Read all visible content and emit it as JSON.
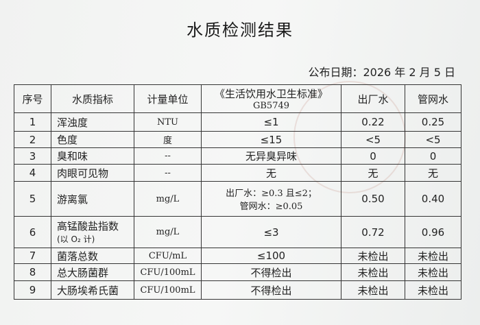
{
  "title": "水质检测结果",
  "publish_date": "公布日期：2026 年 2 月 5 日",
  "table": {
    "headers": [
      "序号",
      "水质指标",
      "计量单位",
      "《生活饮用水卫生标准》",
      "出厂水",
      "管网水"
    ],
    "standard_code": "GB5749",
    "rows": [
      {
        "no": "1",
        "indicator": "浑浊度",
        "unit": "NTU",
        "standard": "≤1",
        "factory": "0.22",
        "network": "0.25"
      },
      {
        "no": "2",
        "indicator": "色度",
        "unit": "度",
        "standard": "≤15",
        "factory": "<5",
        "network": "<5"
      },
      {
        "no": "3",
        "indicator": "臭和味",
        "unit": "--",
        "standard": "无异臭异味",
        "factory": "0",
        "network": "0"
      },
      {
        "no": "4",
        "indicator": "肉眼可见物",
        "unit": "--",
        "standard": "无",
        "factory": "无",
        "network": "无"
      },
      {
        "no": "5",
        "indicator": "游离氯",
        "unit": "mg/L",
        "standard": "出厂水：≥0.3 且≤2；",
        "standard_line2": "管网水：≥0.05",
        "factory": "0.50",
        "network": "0.40"
      },
      {
        "no": "6",
        "indicator": "高锰酸盐指数",
        "indicator_line2": "(以 O₂ 计)",
        "unit": "mg/L",
        "standard": "≤3",
        "factory": "0.72",
        "network": "0.96"
      },
      {
        "no": "7",
        "indicator": "菌落总数",
        "unit": "CFU/mL",
        "standard": "≤100",
        "factory": "未检出",
        "network": "未检出"
      },
      {
        "no": "8",
        "indicator": "总大肠菌群",
        "unit": "CFU/100mL",
        "standard": "不得检出",
        "factory": "未检出",
        "network": "未检出"
      },
      {
        "no": "9",
        "indicator": "大肠埃希氏菌",
        "unit": "CFU/100mL",
        "standard": "不得检出",
        "factory": "未检出",
        "network": "未检出"
      }
    ]
  }
}
